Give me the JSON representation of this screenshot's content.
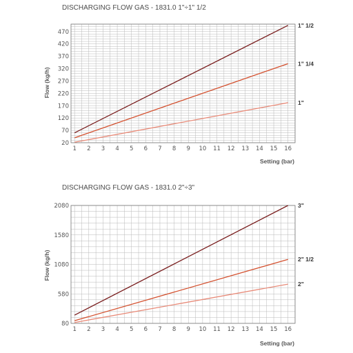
{
  "chart_data": [
    {
      "type": "line",
      "title": "DISCHARGING FLOW GAS - 1831.0 1\"÷1\" 1/2",
      "xlabel": "Setting (bar)",
      "ylabel": "Flow (kg/h)",
      "x_ticks": [
        "1",
        "2",
        "3",
        "4",
        "5",
        "6",
        "7",
        "8",
        "9",
        "10",
        "11",
        "12",
        "13",
        "14",
        "15",
        "16"
      ],
      "y_ticks": [
        "20",
        "70",
        "120",
        "170",
        "220",
        "270",
        "320",
        "370",
        "420",
        "470"
      ],
      "xlim": [
        0.75,
        16.5
      ],
      "ylim": [
        20,
        500
      ],
      "grid": true,
      "x_minor_per_major": 2,
      "y_minor_per_major": 5,
      "series": [
        {
          "name": "1\" 1/2",
          "color": "#7a1f1f",
          "x": [
            1,
            16
          ],
          "y": [
            60,
            495
          ]
        },
        {
          "name": "1\" 1/4",
          "color": "#d4502e",
          "x": [
            1,
            16
          ],
          "y": [
            40,
            340
          ]
        },
        {
          "name": "1\"",
          "color": "#e88a78",
          "x": [
            1,
            16
          ],
          "y": [
            22,
            182
          ]
        }
      ]
    },
    {
      "type": "line",
      "title": "DISCHARGING FLOW GAS - 1831.0 2\"÷3\"",
      "xlabel": "Setting (bar)",
      "ylabel": "Flow (kg/h)",
      "x_ticks": [
        "1",
        "2",
        "3",
        "4",
        "5",
        "6",
        "7",
        "8",
        "9",
        "10",
        "11",
        "12",
        "13",
        "14",
        "15",
        "16"
      ],
      "y_ticks": [
        "80",
        "580",
        "1080",
        "1580",
        "2080"
      ],
      "xlim": [
        0.75,
        16.5
      ],
      "ylim": [
        80,
        2080
      ],
      "grid": true,
      "x_minor_per_major": 2,
      "y_minor_per_major": 5,
      "series": [
        {
          "name": "3\"",
          "color": "#7a1f1f",
          "x": [
            1,
            16
          ],
          "y": [
            220,
            2080
          ]
        },
        {
          "name": "2\" 1/2",
          "color": "#d4502e",
          "x": [
            1,
            16
          ],
          "y": [
            125,
            1165
          ]
        },
        {
          "name": "2\"",
          "color": "#e88a78",
          "x": [
            1,
            16
          ],
          "y": [
            95,
            745
          ]
        }
      ]
    }
  ]
}
